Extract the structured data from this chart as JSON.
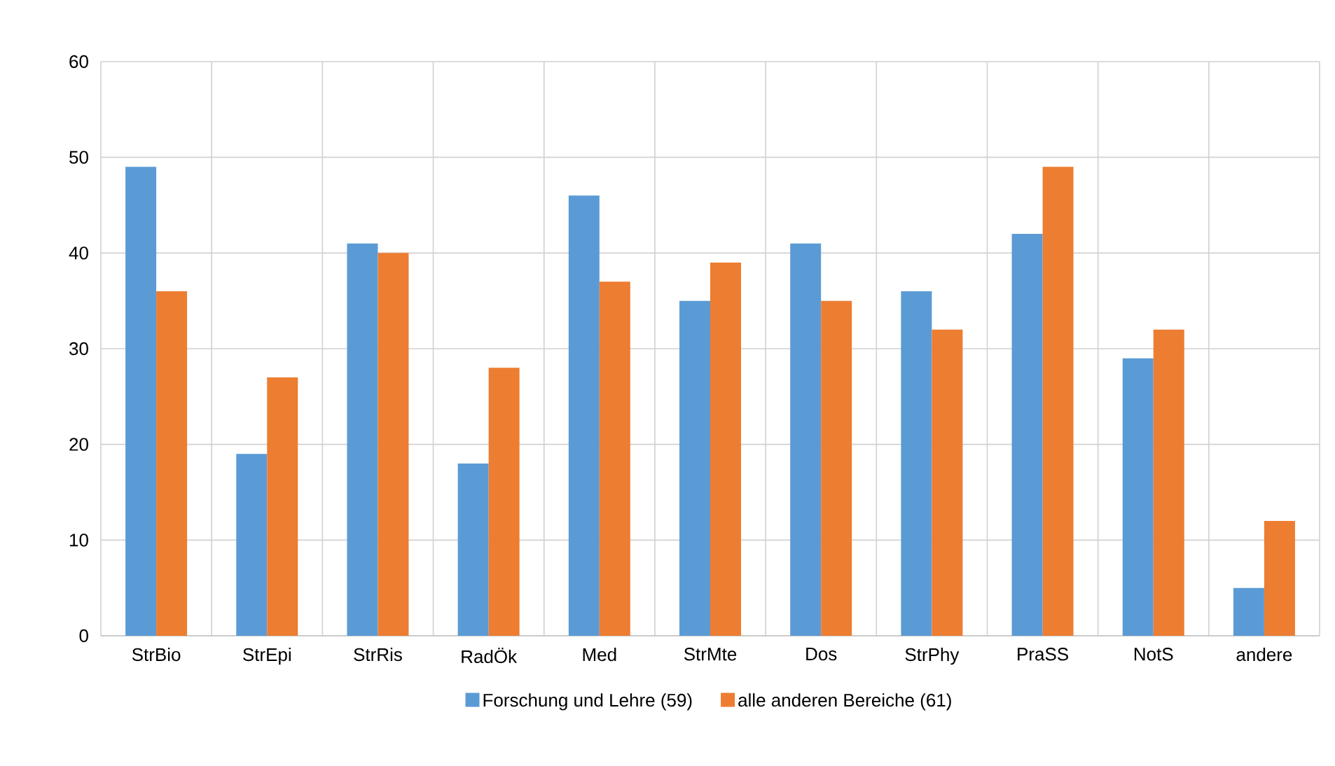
{
  "chart_data": {
    "type": "bar",
    "categories": [
      "StrBio",
      "StrEpi",
      "StrRis",
      "RadÖk",
      "Med",
      "StrMte",
      "Dos",
      "StrPhy",
      "PraSS",
      "NotS",
      "andere"
    ],
    "series": [
      {
        "name": "Forschung und Lehre (59)",
        "color": "#5b9bd5",
        "values": [
          49,
          19,
          41,
          18,
          46,
          35,
          41,
          36,
          42,
          29,
          5
        ]
      },
      {
        "name": "alle anderen Bereiche  (61)",
        "color": "#ed7d31",
        "values": [
          36,
          27,
          40,
          28,
          37,
          39,
          35,
          32,
          49,
          32,
          12
        ]
      }
    ],
    "ylim": [
      0,
      60
    ],
    "yticks": [
      0,
      10,
      20,
      30,
      40,
      50,
      60
    ],
    "grid": true,
    "legend": "bottom"
  }
}
